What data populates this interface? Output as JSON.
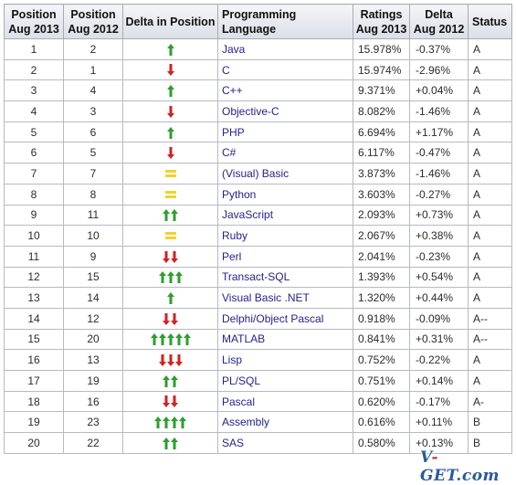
{
  "table": {
    "headers": {
      "position_2013": [
        "Position",
        "Aug 2013"
      ],
      "position_2012": [
        "Position",
        "Aug 2012"
      ],
      "delta_position": "Delta in Position",
      "language": "Programming Language",
      "ratings": [
        "Ratings",
        "Aug 2013"
      ],
      "delta_rating": [
        "Delta",
        "Aug 2012"
      ],
      "status": "Status"
    },
    "rows": [
      {
        "pos2013": "1",
        "pos2012": "2",
        "change": "up",
        "count": 1,
        "language": "Java",
        "rating": "15.978%",
        "delta": "-0.37%",
        "status": "A"
      },
      {
        "pos2013": "2",
        "pos2012": "1",
        "change": "down",
        "count": 1,
        "language": "C",
        "rating": "15.974%",
        "delta": "-2.96%",
        "status": "A"
      },
      {
        "pos2013": "3",
        "pos2012": "4",
        "change": "up",
        "count": 1,
        "language": "C++",
        "rating": "9.371%",
        "delta": "+0.04%",
        "status": "A"
      },
      {
        "pos2013": "4",
        "pos2012": "3",
        "change": "down",
        "count": 1,
        "language": "Objective-C",
        "rating": "8.082%",
        "delta": "-1.46%",
        "status": "A"
      },
      {
        "pos2013": "5",
        "pos2012": "6",
        "change": "up",
        "count": 1,
        "language": "PHP",
        "rating": "6.694%",
        "delta": "+1.17%",
        "status": "A"
      },
      {
        "pos2013": "6",
        "pos2012": "5",
        "change": "down",
        "count": 1,
        "language": "C#",
        "rating": "6.117%",
        "delta": "-0.47%",
        "status": "A"
      },
      {
        "pos2013": "7",
        "pos2012": "7",
        "change": "same",
        "count": 1,
        "language": "(Visual) Basic",
        "rating": "3.873%",
        "delta": "-1.46%",
        "status": "A"
      },
      {
        "pos2013": "8",
        "pos2012": "8",
        "change": "same",
        "count": 1,
        "language": "Python",
        "rating": "3.603%",
        "delta": "-0.27%",
        "status": "A"
      },
      {
        "pos2013": "9",
        "pos2012": "11",
        "change": "up",
        "count": 2,
        "language": "JavaScript",
        "rating": "2.093%",
        "delta": "+0.73%",
        "status": "A"
      },
      {
        "pos2013": "10",
        "pos2012": "10",
        "change": "same",
        "count": 1,
        "language": "Ruby",
        "rating": "2.067%",
        "delta": "+0.38%",
        "status": "A"
      },
      {
        "pos2013": "11",
        "pos2012": "9",
        "change": "down",
        "count": 2,
        "language": "Perl",
        "rating": "2.041%",
        "delta": "-0.23%",
        "status": "A"
      },
      {
        "pos2013": "12",
        "pos2012": "15",
        "change": "up",
        "count": 3,
        "language": "Transact-SQL",
        "rating": "1.393%",
        "delta": "+0.54%",
        "status": "A"
      },
      {
        "pos2013": "13",
        "pos2012": "14",
        "change": "up",
        "count": 1,
        "language": "Visual Basic .NET",
        "rating": "1.320%",
        "delta": "+0.44%",
        "status": "A"
      },
      {
        "pos2013": "14",
        "pos2012": "12",
        "change": "down",
        "count": 2,
        "language": "Delphi/Object Pascal",
        "rating": "0.918%",
        "delta": "-0.09%",
        "status": "A--"
      },
      {
        "pos2013": "15",
        "pos2012": "20",
        "change": "up",
        "count": 5,
        "language": "MATLAB",
        "rating": "0.841%",
        "delta": "+0.31%",
        "status": "A--"
      },
      {
        "pos2013": "16",
        "pos2012": "13",
        "change": "down",
        "count": 3,
        "language": "Lisp",
        "rating": "0.752%",
        "delta": "-0.22%",
        "status": "A"
      },
      {
        "pos2013": "17",
        "pos2012": "19",
        "change": "up",
        "count": 2,
        "language": "PL/SQL",
        "rating": "0.751%",
        "delta": "+0.14%",
        "status": "A"
      },
      {
        "pos2013": "18",
        "pos2012": "16",
        "change": "down",
        "count": 2,
        "language": "Pascal",
        "rating": "0.620%",
        "delta": "-0.17%",
        "status": "A-"
      },
      {
        "pos2013": "19",
        "pos2012": "23",
        "change": "up",
        "count": 4,
        "language": "Assembly",
        "rating": "0.616%",
        "delta": "+0.11%",
        "status": "B"
      },
      {
        "pos2013": "20",
        "pos2012": "22",
        "change": "up",
        "count": 2,
        "language": "SAS",
        "rating": "0.580%",
        "delta": "+0.13%",
        "status": "B"
      }
    ]
  },
  "colors": {
    "up": "#2e9e2e",
    "down": "#d42020",
    "same": "#f2d22a",
    "language_link": "#23238c"
  },
  "watermark": {
    "pre": "V",
    "dash": "-",
    "post": "GET.com"
  }
}
